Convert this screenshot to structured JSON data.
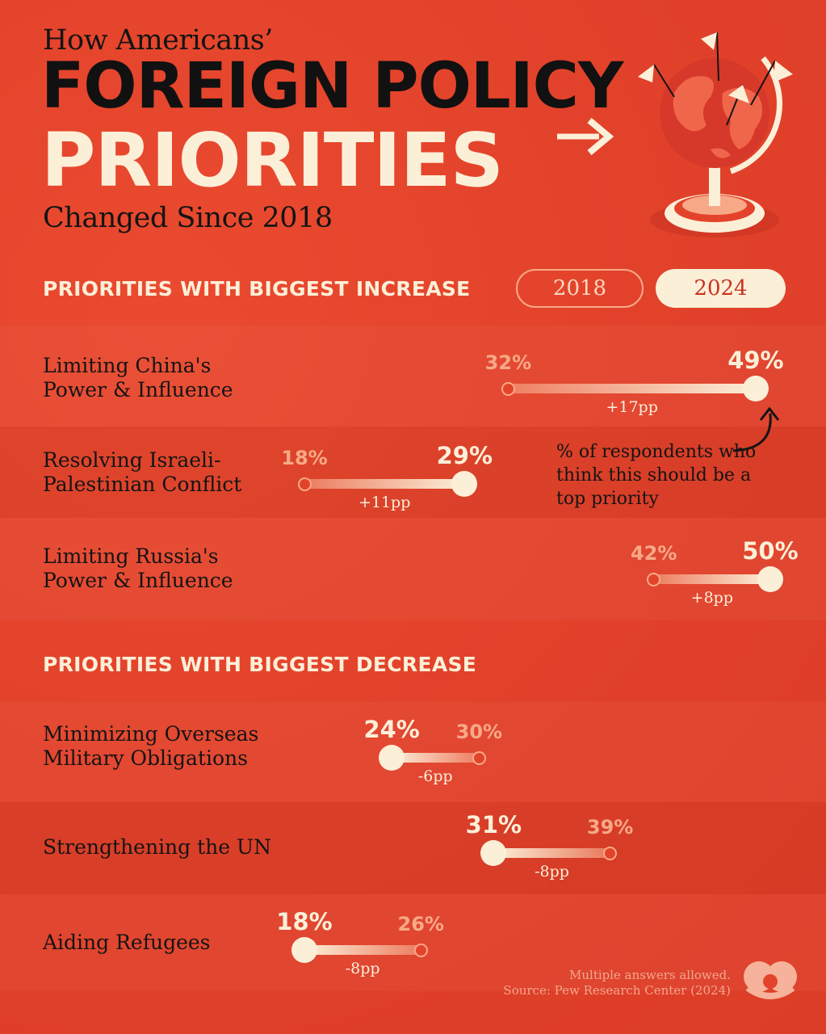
{
  "header": {
    "line1": "How Americans’",
    "line2": "FOREIGN POLICY",
    "line3": "PRIORITIES",
    "line4": "Changed Since 2018"
  },
  "legend": {
    "year_old": "2018",
    "year_new": "2024"
  },
  "sections": {
    "increase_title": "PRIORITIES WITH BIGGEST INCREASE",
    "decrease_title": "PRIORITIES WITH BIGGEST DECREASE"
  },
  "annotation": "% of respondents who think this should be a top priority",
  "footer": {
    "note": "Multiple answers allowed.",
    "source": "Source: Pew Research Center (2024)"
  },
  "colors": {
    "background": "#e4432b",
    "value_2024": "#fcefd8",
    "value_2018": "#f7a987",
    "ink": "#141414"
  },
  "chart_data": {
    "type": "dumbbell",
    "unit": "%",
    "series": [
      {
        "name": "2018",
        "key": "v2018"
      },
      {
        "name": "2024",
        "key": "v2024"
      }
    ],
    "rows": [
      {
        "group": "increase",
        "label": "Limiting China's\nPower & Influence",
        "label_l1": "Limiting China's",
        "label_l2": "Power & Influence",
        "v2018": 32,
        "v2024": 49,
        "v2018_text": "32%",
        "v2024_text": "49%",
        "delta_text": "+17pp"
      },
      {
        "group": "increase",
        "label": "Resolving Israeli-\nPalestinian Conflict",
        "label_l1": "Resolving Israeli-",
        "label_l2": "Palestinian Conflict",
        "v2018": 18,
        "v2024": 29,
        "v2018_text": "18%",
        "v2024_text": "29%",
        "delta_text": "+11pp"
      },
      {
        "group": "increase",
        "label": "Limiting Russia's\nPower & Influence",
        "label_l1": "Limiting Russia's",
        "label_l2": "Power & Influence",
        "v2018": 42,
        "v2024": 50,
        "v2018_text": "42%",
        "v2024_text": "50%",
        "delta_text": "+8pp"
      },
      {
        "group": "decrease",
        "label": "Minimizing Overseas\nMilitary Obligations",
        "label_l1": "Minimizing Overseas",
        "label_l2": "Military Obligations",
        "v2018": 30,
        "v2024": 24,
        "v2018_text": "30%",
        "v2024_text": "24%",
        "delta_text": "-6pp"
      },
      {
        "group": "decrease",
        "label": "Strengthening the UN",
        "label_l1": "Strengthening the UN",
        "label_l2": "",
        "v2018": 39,
        "v2024": 31,
        "v2018_text": "39%",
        "v2024_text": "31%",
        "delta_text": "-8pp"
      },
      {
        "group": "decrease",
        "label": "Aiding Refugees",
        "label_l1": "Aiding Refugees",
        "label_l2": "",
        "v2018": 26,
        "v2024": 18,
        "v2018_text": "26%",
        "v2024_text": "18%",
        "delta_text": "-8pp"
      }
    ]
  }
}
